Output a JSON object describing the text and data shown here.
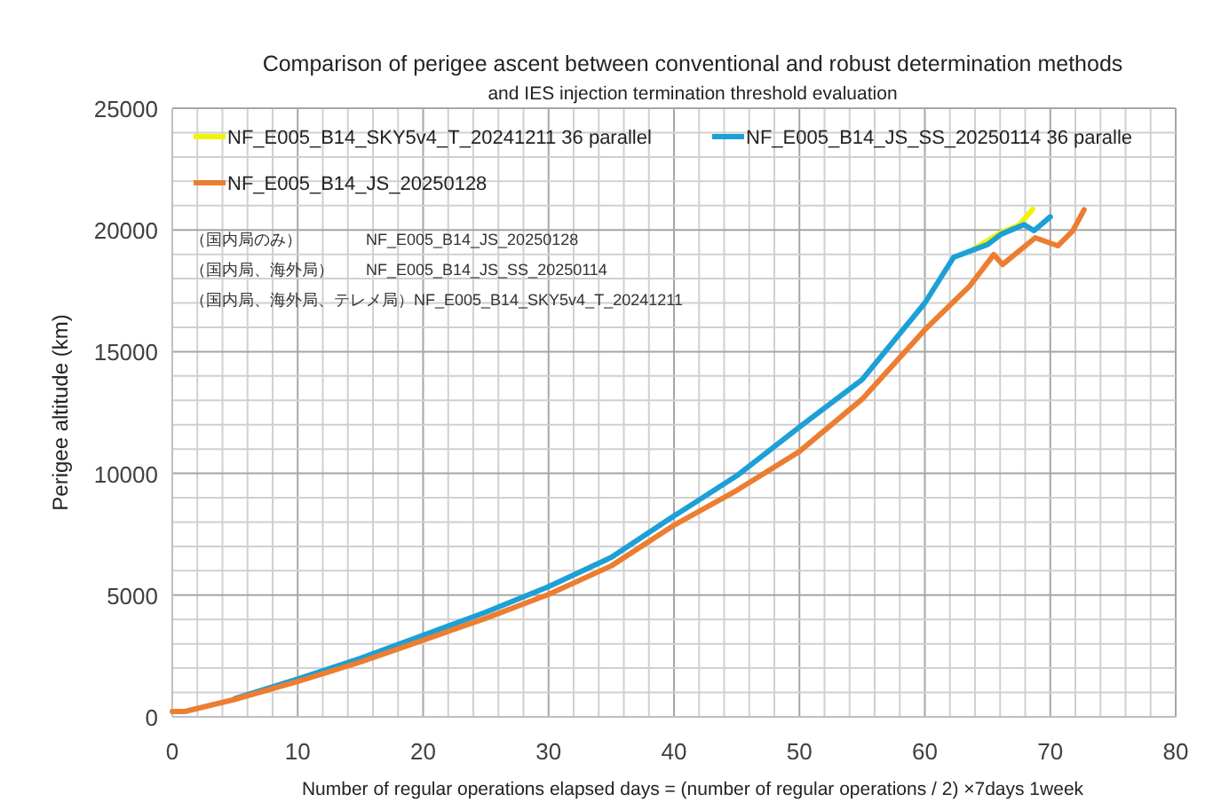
{
  "chart_data": {
    "type": "line",
    "title": "Comparison of perigee ascent between conventional and robust determination methods",
    "subtitle": "and IES injection termination threshold evaluation",
    "xlabel": "Number of regular operations elapsed days = (number of regular operations / 2) ×7days 1week",
    "ylabel": "Perigee altitude (km)",
    "xlim": [
      0,
      80
    ],
    "xticks": [
      0,
      10,
      20,
      30,
      40,
      50,
      60,
      70,
      80
    ],
    "ylim": [
      0,
      25000
    ],
    "yticks": [
      0,
      5000,
      10000,
      15000,
      20000,
      25000
    ],
    "grid": true,
    "legend": "top left",
    "marker": "none",
    "line_style": "solid",
    "annotations": [
      "（国内局のみ）　　　　NF_E005_B14_JS_20250128",
      "（国内局、海外局）　　NF_E005_B14_JS_SS_20250114",
      "（国内局、海外局、テレメ局）NF_E005_B14_SKY5v4_T_20241211"
    ],
    "series": [
      {
        "name": "NF_E005_B14_SKY5v4_T_20241211 36 parallel",
        "color": "#f2f20c",
        "x": [
          64,
          66.1,
          67.5,
          68.6
        ],
        "values": [
          19250,
          19900,
          20200,
          20850
        ]
      },
      {
        "name": "NF_E005_B14_JS_SS_20250114 36 paralle",
        "color": "#1ca0d6",
        "x": [
          5,
          10,
          15,
          20,
          25,
          30,
          35,
          40,
          45,
          50,
          55,
          60,
          62.3,
          65,
          66.1,
          67.9,
          68.7,
          70
        ],
        "values": [
          750,
          1550,
          2400,
          3350,
          4300,
          5350,
          6550,
          8250,
          9900,
          11900,
          13850,
          17000,
          18880,
          19400,
          19830,
          20220,
          19970,
          20540
        ]
      },
      {
        "name": "NF_E005_B14_JS_20250128",
        "color": "#ed7d31",
        "x": [
          0,
          1,
          5,
          10,
          15,
          20,
          25,
          30,
          35,
          40,
          45,
          50,
          55,
          60,
          63.6,
          65.5,
          66.2,
          68.8,
          70.6,
          71.8,
          72.7
        ],
        "values": [
          220,
          220,
          720,
          1450,
          2250,
          3150,
          4050,
          5030,
          6200,
          7870,
          9300,
          10900,
          13050,
          15900,
          17710,
          18990,
          18580,
          19680,
          19350,
          19970,
          20830
        ]
      }
    ]
  }
}
